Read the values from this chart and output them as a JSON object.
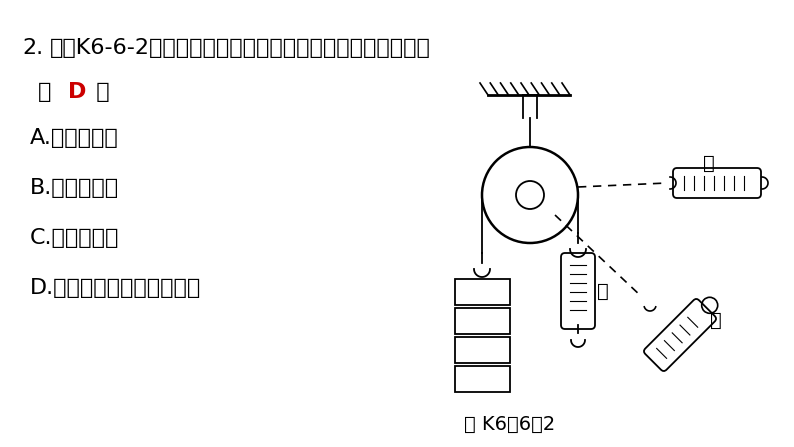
{
  "bg_color": "#ffffff",
  "text_color": "#000000",
  "answer_color": "#cc0000",
  "line_color": "#000000",
  "q_num": "2.",
  "q_text": "如图K6-6-2所示，用这个滑轮提起货物时，所用的三个力中",
  "ans_pre": "（  ",
  "ans_letter": "D",
  "ans_post": "  ）",
  "optA": "A.　甲最省力",
  "optB": "B.　乙最省力",
  "optC": "C.　丙最省力",
  "optD": "D.　三个力一样，且不省力",
  "fig_label": "图 K6－6－2",
  "label_jia": "甲",
  "label_yi": "乙",
  "label_bing": "丙"
}
